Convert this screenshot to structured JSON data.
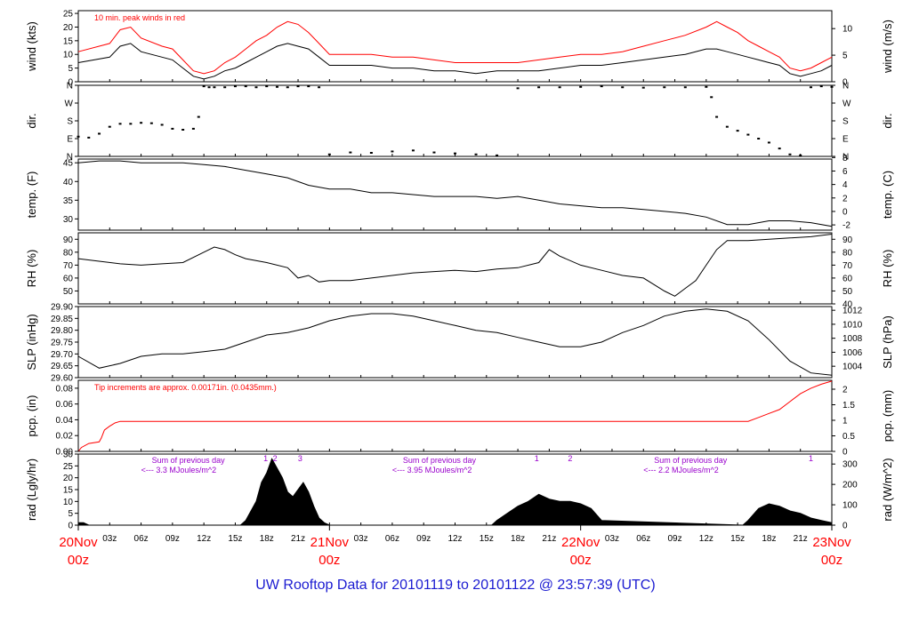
{
  "footer": {
    "title": "UW Rooftop Data for 20101119  to  20101122 @ 23:57:39  (UTC)"
  },
  "time_axis": {
    "hour_ticks": [
      "03z",
      "06z",
      "09z",
      "12z",
      "15z",
      "18z",
      "21z",
      "03z",
      "06z",
      "09z",
      "12z",
      "15z",
      "18z",
      "21z",
      "03z",
      "06z",
      "09z",
      "12z",
      "15z",
      "18z",
      "21z"
    ],
    "day_labels": [
      {
        "day": "20Nov",
        "hour": "00z"
      },
      {
        "day": "21Nov",
        "hour": "00z"
      },
      {
        "day": "22Nov",
        "hour": "00z"
      },
      {
        "day": "23Nov",
        "hour": "00z"
      }
    ],
    "colors": {
      "day_label": "#ff0000",
      "frame": "#000000"
    }
  },
  "chart_data": [
    {
      "type": "line",
      "id": "wind",
      "ylabel": "wind (kts)",
      "ylabel_right": "wind (m/s)",
      "ylim": [
        0,
        26
      ],
      "ylim_right": [
        0,
        13.4
      ],
      "yticks": [
        0,
        5,
        10,
        15,
        20,
        25
      ],
      "yticks_right": [
        0,
        5,
        10
      ],
      "annotation": "10 min. peak winds in red",
      "annotation_color": "#ff0000",
      "series": [
        {
          "color": "#000000",
          "x": [
            0,
            3,
            4,
            5,
            6,
            8,
            9,
            10,
            11,
            12,
            13,
            14,
            15,
            16,
            17,
            18,
            19,
            20,
            21,
            22,
            23,
            24,
            26,
            28,
            30,
            32,
            34,
            36,
            38,
            40,
            42,
            44,
            46,
            48,
            50,
            52,
            54,
            56,
            58,
            60,
            61,
            62,
            63,
            64,
            65,
            66,
            67,
            68,
            69,
            70,
            71,
            72
          ],
          "values": [
            7,
            9,
            13,
            14,
            11,
            9,
            8,
            5,
            2,
            1,
            2,
            4,
            5,
            7,
            9,
            11,
            13,
            14,
            13,
            12,
            9,
            6,
            6,
            6,
            5,
            5,
            4,
            4,
            3,
            4,
            4,
            4,
            5,
            6,
            6,
            7,
            8,
            9,
            10,
            12,
            12,
            11,
            10,
            9,
            8,
            7,
            6,
            3,
            2,
            3,
            4,
            6
          ]
        },
        {
          "color": "#ff0000",
          "x": [
            0,
            3,
            4,
            5,
            6,
            8,
            9,
            10,
            11,
            12,
            13,
            14,
            15,
            16,
            17,
            18,
            19,
            20,
            21,
            22,
            23,
            24,
            26,
            28,
            30,
            32,
            34,
            36,
            38,
            40,
            42,
            44,
            46,
            48,
            50,
            52,
            54,
            56,
            58,
            60,
            61,
            62,
            63,
            64,
            65,
            66,
            67,
            68,
            69,
            70,
            71,
            72
          ],
          "values": [
            11,
            14,
            19,
            20,
            16,
            13,
            12,
            8,
            4,
            3,
            4,
            7,
            9,
            12,
            15,
            17,
            20,
            22,
            21,
            18,
            14,
            10,
            10,
            10,
            9,
            9,
            8,
            7,
            7,
            7,
            7,
            8,
            9,
            10,
            10,
            11,
            13,
            15,
            17,
            20,
            22,
            20,
            18,
            15,
            13,
            11,
            9,
            5,
            4,
            5,
            7,
            9
          ]
        }
      ]
    },
    {
      "type": "scatter",
      "id": "dir",
      "ylabel": "dir.",
      "ylabel_right": "dir.",
      "yticks": [
        "N",
        "E",
        "S",
        "W",
        "N"
      ],
      "yticks_right": [
        "N",
        "E",
        "S",
        "W",
        "N"
      ],
      "ylim": [
        0,
        360
      ],
      "series": [
        {
          "color": "#000000",
          "x": [
            0,
            1,
            2,
            3,
            4,
            5,
            6,
            7,
            8,
            9,
            10,
            11,
            11.5,
            12,
            12.5,
            13,
            14,
            15,
            16,
            17,
            18,
            19,
            20,
            21,
            22,
            23,
            24,
            26,
            28,
            30,
            32,
            34,
            36,
            38,
            40,
            42,
            44,
            46,
            48,
            50,
            52,
            54,
            56,
            58,
            60,
            60.5,
            61,
            62,
            63,
            64,
            65,
            66,
            67,
            68,
            69,
            70,
            71,
            72
          ],
          "values": [
            100,
            95,
            115,
            150,
            165,
            165,
            170,
            168,
            160,
            140,
            135,
            140,
            200,
            355,
            350,
            350,
            350,
            355,
            355,
            350,
            355,
            352,
            350,
            355,
            355,
            350,
            10,
            20,
            18,
            25,
            30,
            20,
            15,
            10,
            5,
            345,
            350,
            350,
            352,
            355,
            350,
            348,
            350,
            350,
            352,
            300,
            200,
            150,
            130,
            110,
            90,
            70,
            40,
            10,
            5,
            350,
            355,
            352
          ]
        }
      ]
    },
    {
      "type": "line",
      "id": "temp",
      "ylabel": "temp. (F)",
      "ylabel_right": "temp. (C)",
      "ylim": [
        27,
        46
      ],
      "yticks": [
        30,
        35,
        40,
        45
      ],
      "yticks_right": [
        -2,
        0,
        2,
        4,
        6,
        8
      ],
      "series": [
        {
          "color": "#000000",
          "x": [
            0,
            2,
            4,
            6,
            8,
            10,
            12,
            14,
            16,
            18,
            20,
            22,
            24,
            26,
            28,
            30,
            32,
            34,
            36,
            38,
            40,
            42,
            44,
            46,
            48,
            50,
            52,
            54,
            56,
            58,
            60,
            62,
            64,
            66,
            68,
            70,
            72
          ],
          "values": [
            45,
            45.5,
            45.5,
            45,
            45,
            45,
            44.5,
            44,
            43,
            42,
            41,
            39,
            38,
            38,
            37,
            37,
            36.5,
            36,
            36,
            36,
            35.5,
            36,
            35,
            34,
            33.5,
            33,
            33,
            32.5,
            32,
            31.5,
            30.5,
            28.5,
            28.5,
            29.5,
            29.5,
            29,
            28
          ]
        }
      ]
    },
    {
      "type": "line",
      "id": "rh",
      "ylabel": "RH (%)",
      "ylabel_right": "RH (%)",
      "ylim": [
        40,
        95
      ],
      "yticks": [
        50,
        60,
        70,
        80,
        90
      ],
      "yticks_right": [
        40,
        50,
        60,
        70,
        80,
        90
      ],
      "series": [
        {
          "color": "#000000",
          "x": [
            0,
            2,
            4,
            6,
            8,
            10,
            12,
            13,
            14,
            15,
            16,
            18,
            20,
            21,
            22,
            23,
            24,
            26,
            28,
            30,
            32,
            34,
            36,
            38,
            40,
            42,
            44,
            45,
            46,
            48,
            50,
            52,
            54,
            55,
            56,
            57,
            58,
            59,
            60,
            61,
            62,
            64,
            66,
            68,
            70,
            72
          ],
          "values": [
            75,
            73,
            71,
            70,
            71,
            72,
            80,
            84,
            82,
            78,
            75,
            72,
            68,
            60,
            62,
            57,
            58,
            58,
            60,
            62,
            64,
            65,
            66,
            65,
            67,
            68,
            72,
            82,
            77,
            70,
            66,
            62,
            60,
            55,
            50,
            46,
            52,
            58,
            70,
            82,
            89,
            89,
            90,
            91,
            92,
            94
          ]
        }
      ]
    },
    {
      "type": "line",
      "id": "slp",
      "ylabel": "SLP (inHg)",
      "ylabel_right": "SLP (hPa)",
      "ylim": [
        29.6,
        29.9
      ],
      "yticks": [
        "29.60",
        "29.65",
        "29.70",
        "29.75",
        "29.80",
        "29.85",
        "29.90"
      ],
      "yticks_right": [
        1004,
        1006,
        1008,
        1010,
        1012
      ],
      "series": [
        {
          "color": "#000000",
          "x": [
            0,
            2,
            4,
            6,
            8,
            10,
            12,
            14,
            16,
            18,
            20,
            22,
            24,
            26,
            28,
            30,
            32,
            34,
            36,
            38,
            40,
            42,
            44,
            46,
            48,
            50,
            52,
            54,
            56,
            58,
            60,
            62,
            64,
            66,
            68,
            70,
            72
          ],
          "values": [
            29.69,
            29.64,
            29.66,
            29.69,
            29.7,
            29.7,
            29.71,
            29.72,
            29.75,
            29.78,
            29.79,
            29.81,
            29.84,
            29.86,
            29.87,
            29.87,
            29.86,
            29.84,
            29.82,
            29.8,
            29.79,
            29.77,
            29.75,
            29.73,
            29.73,
            29.75,
            29.79,
            29.82,
            29.86,
            29.88,
            29.89,
            29.88,
            29.84,
            29.76,
            29.67,
            29.62,
            29.61
          ]
        }
      ]
    },
    {
      "type": "line",
      "id": "pcp",
      "ylabel": "pcp. (in)",
      "ylabel_right": "pcp. (mm)",
      "ylim": [
        0,
        0.09
      ],
      "yticks": [
        "0.00",
        "0.02",
        "0.04",
        "0.06",
        "0.08"
      ],
      "yticks_right": [
        "0",
        "0.5",
        "1",
        "1.5",
        "2"
      ],
      "annotation": "Tip increments are approx. 0.00171in. (0.0435mm.)",
      "annotation_color": "#ff0000",
      "series": [
        {
          "color": "#ff0000",
          "x": [
            0,
            0.3,
            1,
            2,
            2.2,
            2.5,
            3,
            3.5,
            4,
            64,
            65,
            66,
            67,
            68,
            69,
            70,
            71,
            72
          ],
          "values": [
            0,
            0.005,
            0.01,
            0.012,
            0.017,
            0.027,
            0.032,
            0.036,
            0.038,
            0.038,
            0.043,
            0.048,
            0.053,
            0.063,
            0.073,
            0.08,
            0.085,
            0.089
          ]
        }
      ]
    },
    {
      "type": "area",
      "id": "rad",
      "ylabel": "rad (Lgly/hr)",
      "ylabel_right": "rad (W/m^2)",
      "ylim": [
        0,
        30
      ],
      "yticks": [
        0,
        5,
        10,
        15,
        20,
        25,
        30
      ],
      "yticks_right": [
        0,
        100,
        200,
        300
      ],
      "annotation_color": "#9900cc",
      "annotations": [
        {
          "line1": "Sum of previous day",
          "line2": "<--- 3.3 MJoules/m^2",
          "x": 6
        },
        {
          "line1": "Sum of previous day",
          "line2": "<--- 3.95 MJoules/m^2",
          "x": 30
        },
        {
          "line1": "Sum of previous day",
          "line2": "<--- 2.2 MJoules/m^2",
          "x": 54
        }
      ],
      "markers": [
        {
          "label": "1",
          "x": 17.9
        },
        {
          "label": "2",
          "x": 18.8
        },
        {
          "label": "3",
          "x": 21.2
        },
        {
          "label": "1",
          "x": 43.8
        },
        {
          "label": "2",
          "x": 47.0
        },
        {
          "label": "1",
          "x": 70.0
        }
      ],
      "series": [
        {
          "color": "#000000",
          "x": [
            0,
            0.5,
            1,
            15.5,
            16,
            17,
            17.5,
            18,
            18.5,
            19,
            19.5,
            20,
            20.5,
            21,
            21.5,
            22,
            22.5,
            23,
            23.5,
            24,
            39.5,
            40,
            41,
            42,
            43,
            44,
            45,
            46,
            47,
            48,
            49,
            50,
            63.5,
            64,
            65,
            66,
            67,
            68,
            69,
            70,
            71,
            72
          ],
          "values": [
            1,
            1,
            0,
            0,
            2,
            10,
            18,
            22,
            28,
            24,
            20,
            14,
            12,
            15,
            18,
            14,
            8,
            3,
            1,
            0,
            0,
            2,
            5,
            8,
            10,
            13,
            11,
            10,
            10,
            9,
            7,
            2,
            0,
            2,
            7,
            9,
            8,
            6,
            5,
            3,
            2,
            1
          ]
        }
      ]
    }
  ]
}
